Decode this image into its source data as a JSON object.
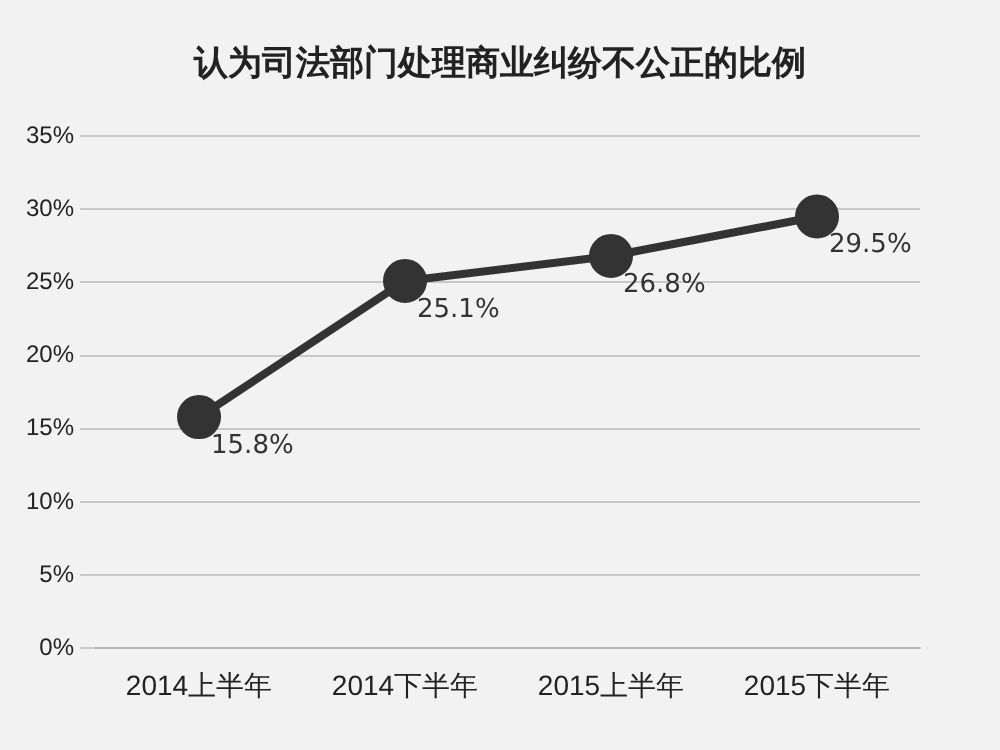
{
  "chart_data": {
    "type": "line",
    "title": "认为司法部门处理商业纠纷不公正的比例",
    "categories": [
      "2014上半年",
      "2014下半年",
      "2015上半年",
      "2015下半年"
    ],
    "series": [
      {
        "color": "#333333",
        "values": [
          15.8,
          25.1,
          26.8,
          29.5
        ],
        "value_labels": [
          "15.8%",
          "25.1%",
          "26.8%",
          "29.5%"
        ]
      }
    ],
    "ylim": [
      0,
      35
    ],
    "yticks": [
      {
        "value": 0,
        "label": "0%"
      },
      {
        "value": 5,
        "label": "5%"
      },
      {
        "value": 10,
        "label": "10%"
      },
      {
        "value": 15,
        "label": "15%"
      },
      {
        "value": 20,
        "label": "20%"
      },
      {
        "value": 25,
        "label": "25%"
      },
      {
        "value": 30,
        "label": "30%"
      },
      {
        "value": 35,
        "label": "35%"
      }
    ],
    "grid": "y",
    "legend": false,
    "marker": "circle",
    "line_style": "solid"
  }
}
